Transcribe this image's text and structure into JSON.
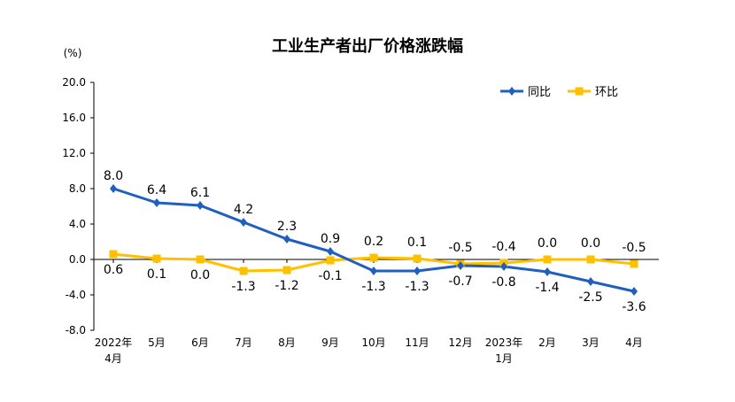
{
  "chart_data": {
    "type": "line",
    "title": "工业生产者出厂价格涨跌幅",
    "unit_label": "(%)",
    "categories": [
      [
        "2022年",
        "4月"
      ],
      [
        "5月"
      ],
      [
        "6月"
      ],
      [
        "7月"
      ],
      [
        "8月"
      ],
      [
        "9月"
      ],
      [
        "10月"
      ],
      [
        "11月"
      ],
      [
        "12月"
      ],
      [
        "2023年",
        "1月"
      ],
      [
        "2月"
      ],
      [
        "3月"
      ],
      [
        "4月"
      ]
    ],
    "y_ticks": [
      "20.0",
      "16.0",
      "12.0",
      "8.0",
      "4.0",
      "0.0",
      "-4.0",
      "-8.0"
    ],
    "ylim": [
      -8,
      20
    ],
    "grid": false,
    "legend_position": "top-right",
    "series": [
      {
        "name": "同比",
        "color": "#1f5fbf",
        "marker": "diamond",
        "values": [
          8.0,
          6.4,
          6.1,
          4.2,
          2.3,
          0.9,
          -1.3,
          -1.3,
          -0.7,
          -0.8,
          -1.4,
          -2.5,
          -3.6
        ],
        "labels": [
          "8.0",
          "6.4",
          "6.1",
          "4.2",
          "2.3",
          "0.9",
          "-1.3",
          "-1.3",
          "-0.7",
          "-0.8",
          "-1.4",
          "-2.5",
          "-3.6"
        ]
      },
      {
        "name": "环比",
        "color": "#ffc000",
        "marker": "square",
        "values": [
          0.6,
          0.1,
          0.0,
          -1.3,
          -1.2,
          -0.1,
          0.2,
          0.1,
          -0.5,
          -0.4,
          0.0,
          0.0,
          -0.5
        ],
        "labels": [
          "0.6",
          "0.1",
          "0.0",
          "-1.3",
          "-1.2",
          "-0.1",
          "0.2",
          "0.1",
          "-0.5",
          "-0.4",
          "0.0",
          "0.0",
          "-0.5"
        ]
      }
    ]
  }
}
